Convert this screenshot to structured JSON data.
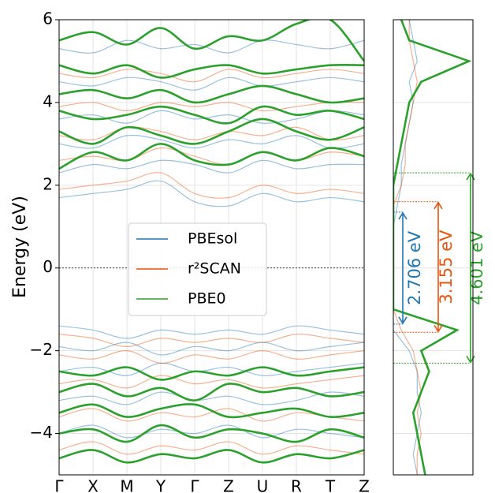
{
  "chart_data": {
    "type": "band-structure",
    "y_label": "Energy (eV)",
    "categories": [
      "Γ",
      "X",
      "M",
      "Y",
      "Γ",
      "Z",
      "U",
      "R",
      "T",
      "Z"
    ],
    "ylim": [
      -5,
      6
    ],
    "yticks": [
      {
        "value": -4,
        "label": "−4"
      },
      {
        "value": -2,
        "label": "−2"
      },
      0,
      2,
      4,
      6
    ],
    "grid": true,
    "zero_line": true,
    "legend": "center",
    "series": [
      {
        "name": "PBEsol",
        "color": "#1f77b4",
        "bands": [
          [
            1.7,
            1.8,
            1.9,
            2.1,
            1.6,
            1.5,
            1.8,
            1.6,
            1.7,
            1.6
          ],
          [
            2.3,
            2.5,
            2.4,
            2.6,
            2.5,
            2.3,
            2.6,
            2.4,
            2.5,
            2.5
          ],
          [
            3.0,
            2.9,
            3.2,
            3.1,
            2.9,
            3.1,
            3.0,
            3.2,
            2.9,
            3.0
          ],
          [
            3.6,
            3.7,
            3.5,
            3.8,
            3.6,
            3.7,
            3.5,
            3.6,
            3.8,
            3.7
          ],
          [
            4.5,
            4.4,
            4.6,
            4.5,
            4.3,
            4.6,
            4.4,
            4.5,
            4.6,
            4.5
          ],
          [
            5.3,
            5.2,
            5.5,
            5.3,
            5.4,
            5.2,
            5.5,
            5.4,
            5.3,
            5.5
          ],
          [
            -1.4,
            -1.5,
            -1.7,
            -1.5,
            -1.6,
            -1.5,
            -1.6,
            -1.4,
            -1.5,
            -1.6
          ],
          [
            -1.9,
            -2.0,
            -1.8,
            -2.1,
            -1.9,
            -2.0,
            -1.8,
            -2.0,
            -1.9,
            -1.8
          ],
          [
            -2.5,
            -2.4,
            -2.6,
            -2.3,
            -2.5,
            -2.4,
            -2.6,
            -2.5,
            -2.4,
            -2.3
          ],
          [
            -3.2,
            -3.1,
            -3.3,
            -3.0,
            -3.2,
            -3.1,
            -3.3,
            -3.2,
            -3.0,
            -3.1
          ],
          [
            -4.0,
            -3.8,
            -4.1,
            -3.9,
            -4.0,
            -3.8,
            -4.1,
            -3.9,
            -4.0,
            -4.1
          ]
        ],
        "dos": [
          0.3,
          0.25,
          0.3,
          0.35,
          0.3,
          0.3,
          0.2,
          0,
          0,
          0,
          0,
          0,
          0,
          0.05,
          0.1,
          0.1,
          0.15,
          0.2,
          0.25,
          0.2,
          0.3,
          0.25,
          0.2
        ]
      },
      {
        "name": "r²SCAN",
        "color": "#e6550d",
        "bands": [
          [
            1.9,
            2.0,
            2.1,
            2.3,
            1.8,
            1.7,
            2.0,
            1.8,
            1.9,
            1.8
          ],
          [
            2.6,
            2.7,
            2.6,
            2.9,
            2.7,
            2.5,
            2.8,
            2.6,
            2.8,
            2.7
          ],
          [
            3.2,
            3.1,
            3.4,
            3.3,
            3.1,
            3.3,
            3.2,
            3.4,
            3.1,
            3.2
          ],
          [
            3.9,
            4.0,
            3.8,
            4.0,
            3.9,
            4.0,
            3.8,
            3.9,
            4.0,
            4.0
          ],
          [
            4.7,
            4.6,
            4.8,
            4.7,
            4.5,
            4.8,
            4.6,
            4.7,
            4.8,
            4.7
          ],
          [
            -1.6,
            -1.7,
            -1.9,
            -1.7,
            -1.8,
            -1.7,
            -1.8,
            -1.6,
            -1.7,
            -1.8
          ],
          [
            -2.1,
            -2.2,
            -2.0,
            -2.3,
            -2.1,
            -2.2,
            -2.0,
            -2.2,
            -2.1,
            -2.0
          ],
          [
            -2.8,
            -2.7,
            -2.9,
            -2.6,
            -2.8,
            -2.7,
            -2.9,
            -2.8,
            -2.7,
            -2.6
          ],
          [
            -3.6,
            -3.4,
            -3.7,
            -3.5,
            -3.6,
            -3.4,
            -3.7,
            -3.5,
            -3.6,
            -3.7
          ],
          [
            -4.4,
            -4.2,
            -4.5,
            -4.3,
            -4.4,
            -4.2,
            -4.5,
            -4.3,
            -4.4,
            -4.5
          ]
        ],
        "dos": [
          0.3,
          0.3,
          0.35,
          0.3,
          0.35,
          0.3,
          0.25,
          0.1,
          0,
          0,
          0,
          0,
          0,
          0,
          0.1,
          0.15,
          0.15,
          0.2,
          0.25,
          0.3,
          0.25,
          0.2,
          0.2
        ]
      },
      {
        "name": "PBE0",
        "color": "#2ca02c",
        "bands": [
          [
            2.4,
            2.8,
            2.6,
            3.0,
            2.6,
            2.5,
            2.8,
            2.6,
            2.9,
            2.7
          ],
          [
            3.3,
            3.0,
            3.4,
            3.2,
            3.0,
            3.3,
            3.6,
            3.3,
            3.1,
            3.4
          ],
          [
            3.8,
            3.6,
            3.7,
            3.9,
            3.7,
            3.5,
            3.9,
            3.7,
            3.8,
            3.6
          ],
          [
            4.2,
            4.3,
            4.1,
            4.3,
            4.0,
            4.2,
            4.4,
            4.2,
            4.0,
            4.1
          ],
          [
            4.9,
            4.7,
            4.9,
            4.6,
            4.8,
            4.9,
            4.7,
            4.8,
            4.9,
            4.9
          ],
          [
            5.5,
            5.7,
            5.4,
            5.8,
            5.3,
            5.6,
            5.5,
            5.9,
            6.0,
            5.0
          ],
          [
            -2.5,
            -2.6,
            -2.4,
            -2.7,
            -2.5,
            -2.6,
            -2.4,
            -2.6,
            -2.5,
            -2.4
          ],
          [
            -3.0,
            -2.8,
            -3.1,
            -2.9,
            -3.2,
            -2.8,
            -3.0,
            -2.9,
            -3.1,
            -3.0
          ],
          [
            -3.5,
            -3.3,
            -3.6,
            -3.4,
            -3.3,
            -3.6,
            -3.5,
            -3.4,
            -3.6,
            -3.5
          ],
          [
            -4.0,
            -3.9,
            -4.2,
            -3.8,
            -4.1,
            -3.9,
            -4.0,
            -4.2,
            -3.9,
            -4.1
          ],
          [
            -4.6,
            -4.4,
            -4.7,
            -4.5,
            -4.6,
            -4.4,
            -4.7,
            -4.5,
            -4.6,
            -4.4
          ]
        ],
        "dos": [
          0.4,
          0.35,
          0.3,
          0.25,
          0.35,
          0.45,
          0.35,
          0.8,
          0,
          0,
          0,
          0,
          0,
          0,
          0,
          0.05,
          0.1,
          0.15,
          0.2,
          0.35,
          0.95,
          0.2,
          0.1
        ]
      }
    ],
    "dos_energy": [
      -5,
      -4.5,
      -4,
      -3.5,
      -3,
      -2.5,
      -2,
      -1.5,
      -1,
      -0.5,
      0,
      0.5,
      1,
      1.5,
      2,
      2.5,
      3,
      3.5,
      4,
      4.5,
      5,
      5.5,
      6
    ],
    "dos_xlim": [
      0,
      1
    ],
    "gaps": [
      {
        "label": "2.706 eV",
        "color": "#1f77b4",
        "vbm": -1.356,
        "cbm": 1.35
      },
      {
        "label": "3.155 eV",
        "color": "#e6550d",
        "vbm": -1.555,
        "cbm": 1.6
      },
      {
        "label": "4.601 eV",
        "color": "#2ca02c",
        "vbm": -2.301,
        "cbm": 2.3
      }
    ]
  }
}
